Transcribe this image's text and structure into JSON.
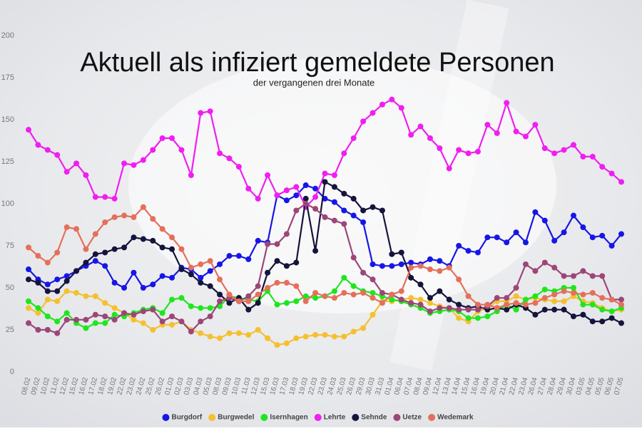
{
  "chart_data": {
    "type": "line",
    "title": "Aktuell als infiziert gemeldete Personen",
    "subtitle": "der vergangenen drei Monate",
    "categories": [
      "08.02",
      "09.02",
      "10.02",
      "11.02",
      "12.02",
      "15.02",
      "16.02",
      "17.02",
      "18.02",
      "19.02",
      "22.02",
      "23.02",
      "24.02",
      "25.02",
      "26.02",
      "01.03",
      "02.03",
      "03.03",
      "04.03",
      "05.03",
      "08.03",
      "09.03",
      "10.03",
      "11.03",
      "12.03",
      "15.03",
      "16.03",
      "17.03",
      "18.03",
      "19.03",
      "22.03",
      "23.03",
      "24.03",
      "25.03",
      "26.03",
      "29.03",
      "30.03",
      "31.03",
      "01.04",
      "06.04",
      "07.04",
      "08.04",
      "09.04",
      "12.04",
      "13.04",
      "14.04",
      "15.04",
      "16.04",
      "19.04",
      "20.04",
      "21.04",
      "22.04",
      "23.04",
      "26.04",
      "27.04",
      "28.04",
      "29.04",
      "30.04",
      "03.05",
      "04.05",
      "05.05",
      "06.05",
      "07.05"
    ],
    "ylim": [
      0,
      200
    ],
    "yticks": [
      0,
      25,
      50,
      75,
      100,
      125,
      150,
      175,
      200
    ],
    "grid": false,
    "legend": "bottom",
    "series": [
      {
        "name": "Burgdorf",
        "color": "#1616e6",
        "values": [
          61,
          55,
          52,
          55,
          57,
          60,
          63,
          66,
          63,
          53,
          50,
          59,
          50,
          52,
          57,
          56,
          62,
          61,
          56,
          60,
          64,
          69,
          69,
          67,
          78,
          77,
          105,
          102,
          105,
          111,
          109,
          103,
          101,
          96,
          93,
          89,
          64,
          63,
          63,
          64,
          65,
          64,
          67,
          66,
          63,
          75,
          72,
          71,
          80,
          80,
          77,
          83,
          77,
          95,
          90,
          78,
          83,
          93,
          86,
          80,
          81,
          75,
          82
        ]
      },
      {
        "name": "Burgwedel",
        "color": "#f5c030",
        "values": [
          38,
          35,
          43,
          42,
          48,
          47,
          45,
          45,
          41,
          38,
          35,
          31,
          29,
          25,
          28,
          28,
          30,
          25,
          23,
          21,
          20,
          23,
          23,
          22,
          25,
          20,
          16,
          17,
          20,
          21,
          22,
          22,
          21,
          21,
          24,
          26,
          34,
          42,
          42,
          43,
          44,
          43,
          41,
          39,
          38,
          32,
          30,
          36,
          38,
          42,
          42,
          45,
          43,
          44,
          43,
          42,
          42,
          45,
          42,
          41,
          38,
          36,
          37
        ]
      },
      {
        "name": "Isernhagen",
        "color": "#1ee61e",
        "values": [
          42,
          38,
          33,
          30,
          35,
          29,
          26,
          29,
          29,
          34,
          33,
          35,
          37,
          38,
          35,
          43,
          44,
          39,
          38,
          38,
          39,
          45,
          44,
          43,
          42,
          48,
          40,
          41,
          42,
          45,
          44,
          45,
          48,
          56,
          51,
          48,
          47,
          45,
          43,
          42,
          40,
          38,
          35,
          36,
          37,
          36,
          32,
          32,
          33,
          36,
          40,
          37,
          43,
          45,
          49,
          48,
          50,
          50,
          40,
          40,
          37,
          36,
          38
        ]
      },
      {
        "name": "Lehrte",
        "color": "#f01ef0",
        "values": [
          144,
          135,
          132,
          129,
          119,
          124,
          117,
          104,
          104,
          103,
          124,
          123,
          126,
          132,
          139,
          139,
          132,
          117,
          154,
          155,
          130,
          127,
          122,
          109,
          103,
          117,
          105,
          108,
          110,
          98,
          104,
          118,
          117,
          130,
          139,
          149,
          154,
          159,
          162,
          157,
          141,
          146,
          139,
          133,
          121,
          132,
          130,
          131,
          147,
          142,
          160,
          143,
          140,
          147,
          133,
          130,
          132,
          135,
          128,
          128,
          122,
          118,
          113
        ]
      },
      {
        "name": "Sehnde",
        "color": "#14143c",
        "values": [
          55,
          53,
          48,
          48,
          54,
          60,
          65,
          70,
          71,
          73,
          74,
          80,
          79,
          78,
          74,
          73,
          61,
          58,
          53,
          51,
          46,
          41,
          44,
          37,
          41,
          59,
          66,
          63,
          65,
          103,
          72,
          113,
          110,
          106,
          103,
          96,
          98,
          96,
          70,
          71,
          56,
          52,
          44,
          48,
          43,
          40,
          38,
          39,
          37,
          38,
          37,
          40,
          38,
          34,
          37,
          37,
          37,
          33,
          34,
          30,
          30,
          32,
          29
        ]
      },
      {
        "name": "Uetze",
        "color": "#9c4678",
        "values": [
          29,
          25,
          25,
          23,
          31,
          31,
          31,
          34,
          33,
          31,
          35,
          34,
          36,
          37,
          30,
          33,
          30,
          24,
          30,
          33,
          42,
          44,
          42,
          45,
          51,
          76,
          76,
          82,
          96,
          100,
          97,
          92,
          90,
          88,
          68,
          59,
          55,
          47,
          46,
          43,
          41,
          40,
          36,
          38,
          38,
          37,
          37,
          37,
          39,
          44,
          44,
          50,
          64,
          60,
          65,
          62,
          57,
          57,
          60,
          57,
          57,
          43,
          43
        ]
      },
      {
        "name": "Wedemark",
        "color": "#e4705a",
        "values": [
          74,
          69,
          65,
          71,
          86,
          85,
          73,
          82,
          89,
          92,
          93,
          92,
          98,
          91,
          85,
          80,
          73,
          62,
          64,
          66,
          55,
          46,
          42,
          42,
          46,
          50,
          53,
          53,
          51,
          42,
          47,
          45,
          44,
          47,
          46,
          47,
          44,
          41,
          46,
          48,
          62,
          63,
          61,
          60,
          62,
          55,
          45,
          40,
          40,
          38,
          40,
          41,
          40,
          41,
          44,
          46,
          48,
          47,
          46,
          47,
          44,
          43,
          40
        ]
      }
    ]
  }
}
